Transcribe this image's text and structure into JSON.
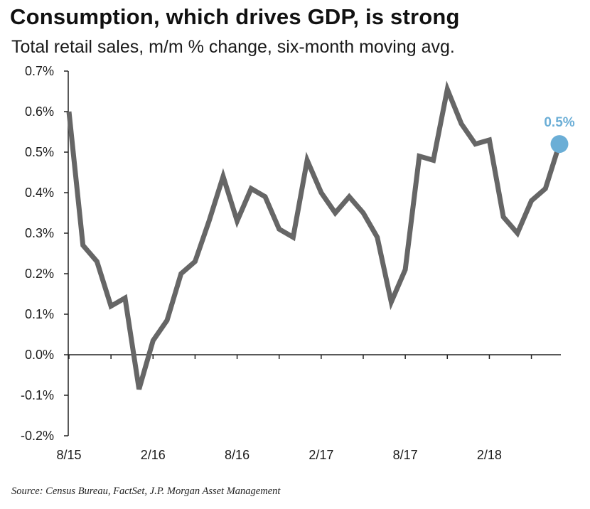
{
  "chart_data": {
    "type": "line",
    "title": "Consumption, which drives GDP, is strong",
    "subtitle": "Total retail sales, m/m % change, six-month moving avg.",
    "xlabel": "",
    "ylabel": "",
    "ylim": [
      -0.2,
      0.7
    ],
    "ytick_labels": [
      "0.7%",
      "0.6%",
      "0.5%",
      "0.4%",
      "0.3%",
      "0.2%",
      "0.1%",
      "0.0%",
      "-0.1%",
      "-0.2%"
    ],
    "ytick_values": [
      0.7,
      0.6,
      0.5,
      0.4,
      0.3,
      0.2,
      0.1,
      0.0,
      -0.1,
      -0.2
    ],
    "xtick_labels": [
      "8/15",
      "2/16",
      "8/16",
      "2/17",
      "8/17",
      "2/18"
    ],
    "xtick_indices": [
      0,
      6,
      12,
      18,
      24,
      30
    ],
    "series": [
      {
        "name": "Total retail sales, m/m % change, six-month moving avg.",
        "values": [
          0.6,
          0.27,
          0.23,
          0.12,
          0.14,
          -0.085,
          0.035,
          0.085,
          0.2,
          0.23,
          0.33,
          0.44,
          0.33,
          0.41,
          0.39,
          0.31,
          0.29,
          0.48,
          0.4,
          0.35,
          0.39,
          0.35,
          0.29,
          0.13,
          0.21,
          0.49,
          0.48,
          0.655,
          0.57,
          0.52,
          0.53,
          0.34,
          0.3,
          0.38,
          0.41,
          0.52
        ]
      }
    ],
    "end_label": "0.5%",
    "colors": {
      "line": "#666666",
      "marker": "#6baed6",
      "end_label": "#6baed6",
      "axis": "#222222"
    }
  },
  "source": "Source: Census Bureau, FactSet, J.P. Morgan Asset Management"
}
